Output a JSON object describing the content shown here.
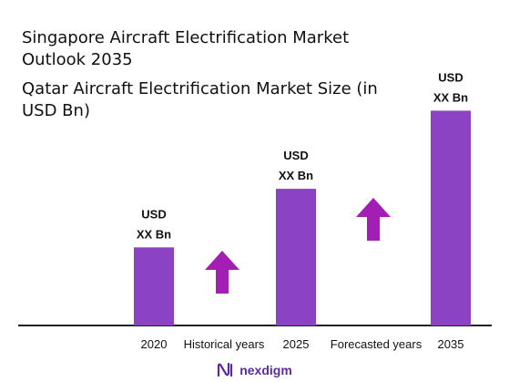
{
  "title": "Singapore Aircraft Electrification Market Outlook 2035",
  "subtitle": "Qatar Aircraft Electrification Market Size (in USD Bn)",
  "brand": {
    "name": "nexdigm",
    "icon": "nexdigm-logo-icon"
  },
  "colors": {
    "bar": "#8b43c4",
    "arrow": "#a31fb4",
    "axis": "#222222"
  },
  "period_labels": [
    "Historical years",
    "Forecasted years"
  ],
  "trend_arrows": [
    {
      "name": "historical-growth-arrow",
      "icon": "up-arrow-icon"
    },
    {
      "name": "forecast-growth-arrow",
      "icon": "up-arrow-icon"
    }
  ],
  "chart_data": {
    "type": "bar",
    "categories": [
      "2020",
      "2025",
      "2035"
    ],
    "values": [
      1,
      1.75,
      2.75
    ],
    "value_labels": [
      [
        "USD",
        "XX Bn"
      ],
      [
        "USD",
        "XX Bn"
      ],
      [
        "USD",
        "XX Bn"
      ]
    ],
    "ylim": [
      0,
      3
    ],
    "grid": false,
    "legend": "none"
  }
}
